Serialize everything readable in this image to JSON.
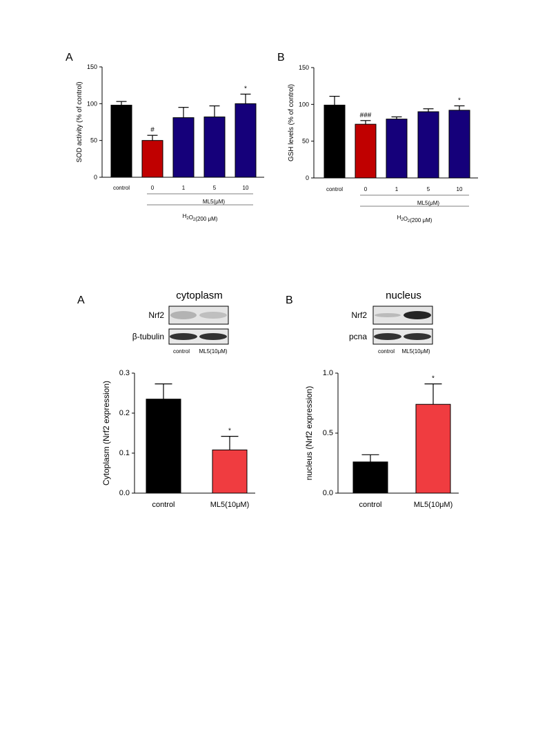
{
  "colors": {
    "black": "#000000",
    "red": "#c00000",
    "navy": "#15007a",
    "light_red": "#f03c40"
  },
  "chart_data": [
    {
      "type": "bar",
      "panel_label": "A",
      "ylabel": "SOD activity (% of control)",
      "ylim": [
        0,
        150
      ],
      "yticks": [
        "0",
        "50",
        "100",
        "150"
      ],
      "categories": [
        "control",
        "0",
        "1",
        "5",
        "10"
      ],
      "values": [
        98,
        50,
        81,
        82,
        100
      ],
      "errors": [
        5,
        7,
        14,
        15,
        13
      ],
      "bar_colors": [
        "black",
        "red",
        "navy",
        "navy",
        "navy"
      ],
      "annotations": [
        "",
        "#",
        "",
        "",
        "*"
      ],
      "group_labels": [
        "ML5(μM)",
        "H2O2(200 μM)"
      ],
      "grid": false
    },
    {
      "type": "bar",
      "panel_label": "B",
      "ylabel": "GSH levels (% of control)",
      "ylim": [
        0,
        150
      ],
      "yticks": [
        "0",
        "50",
        "100",
        "150"
      ],
      "categories": [
        "control",
        "0",
        "1",
        "5",
        "10"
      ],
      "values": [
        99,
        73,
        80,
        90,
        92
      ],
      "errors": [
        12,
        5,
        3,
        4,
        6
      ],
      "bar_colors": [
        "black",
        "red",
        "navy",
        "navy",
        "navy"
      ],
      "annotations": [
        "",
        "###",
        "",
        "",
        "*"
      ],
      "group_labels": [
        "ML5(μM)",
        "H2O2(200 μM)"
      ],
      "grid": false
    },
    {
      "type": "bar",
      "panel_label": "A",
      "blot_title": "cytoplasm",
      "blot_rows": [
        "Nrf2",
        "β-tubulin"
      ],
      "lanes": [
        "control",
        "ML5(10μM)"
      ],
      "ylabel": "Cytoplasm (Nrf2 expression)",
      "ylim": [
        0,
        0.3
      ],
      "yticks": [
        "0.0",
        "0.1",
        "0.2",
        "0.3"
      ],
      "categories": [
        "control",
        "ML5(10μM)"
      ],
      "values": [
        0.235,
        0.108
      ],
      "errors": [
        0.038,
        0.034
      ],
      "bar_colors": [
        "black",
        "light_red"
      ],
      "annotations": [
        "",
        "*"
      ],
      "grid": false
    },
    {
      "type": "bar",
      "panel_label": "B",
      "blot_title": "nucleus",
      "blot_rows": [
        "Nrf2",
        "pcna"
      ],
      "lanes": [
        "control",
        "ML5(10μM)"
      ],
      "ylabel": "nucleus (Nrf2 expression)",
      "ylim": [
        0,
        1.0
      ],
      "yticks": [
        "0.0",
        "0.5",
        "1.0"
      ],
      "categories": [
        "control",
        "ML5(10μM)"
      ],
      "values": [
        0.26,
        0.74
      ],
      "errors": [
        0.06,
        0.17
      ],
      "bar_colors": [
        "black",
        "light_red"
      ],
      "annotations": [
        "",
        "*"
      ],
      "grid": false
    }
  ]
}
